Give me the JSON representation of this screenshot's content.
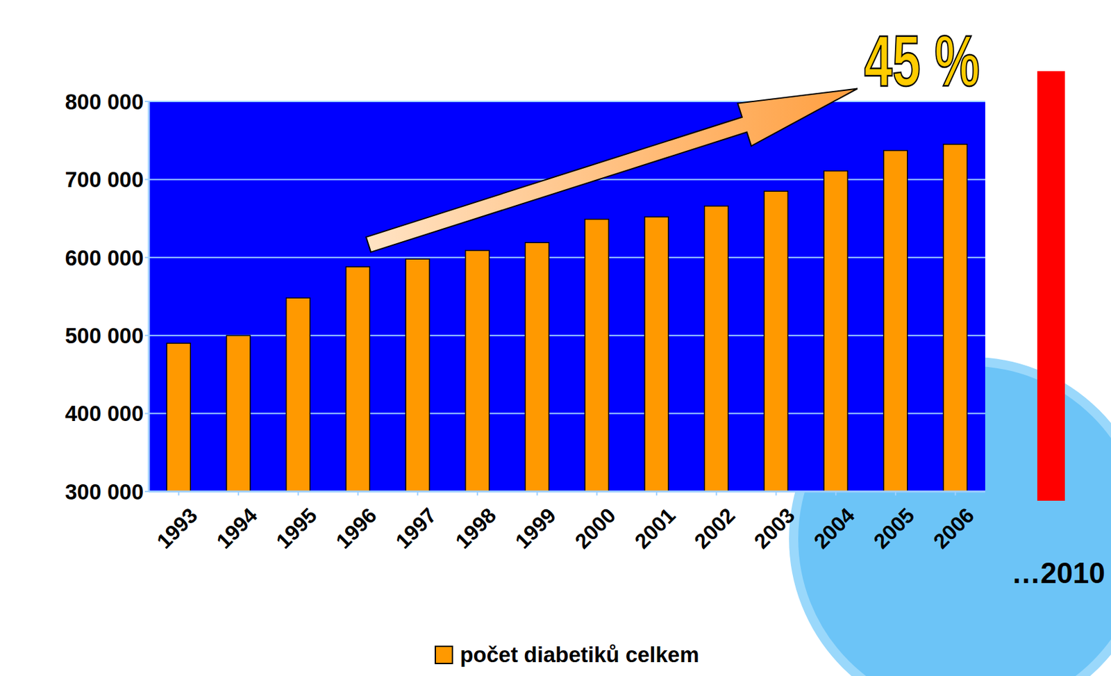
{
  "chart_data": {
    "type": "bar",
    "categories": [
      "1993",
      "1994",
      "1995",
      "1996",
      "1997",
      "1998",
      "1999",
      "2000",
      "2001",
      "2002",
      "2003",
      "2004",
      "2005",
      "2006"
    ],
    "series": [
      {
        "name": "počet diabetiků celkem",
        "color": "#ff9900",
        "values": [
          490000,
          500000,
          548000,
          588000,
          598000,
          609000,
          619000,
          649000,
          652000,
          666000,
          685000,
          711000,
          737000,
          745000
        ]
      }
    ],
    "ylim": [
      300000,
      800000
    ],
    "yticks": [
      {
        "value": 300000,
        "label": "300 000"
      },
      {
        "value": 400000,
        "label": "400 000"
      },
      {
        "value": 500000,
        "label": "500 000"
      },
      {
        "value": 600000,
        "label": "600 000"
      },
      {
        "value": 700000,
        "label": "700 000"
      },
      {
        "value": 800000,
        "label": "800 000"
      }
    ],
    "grid": true,
    "legend": "bottom",
    "annotations": [
      "45 %",
      "…2010"
    ]
  }
}
